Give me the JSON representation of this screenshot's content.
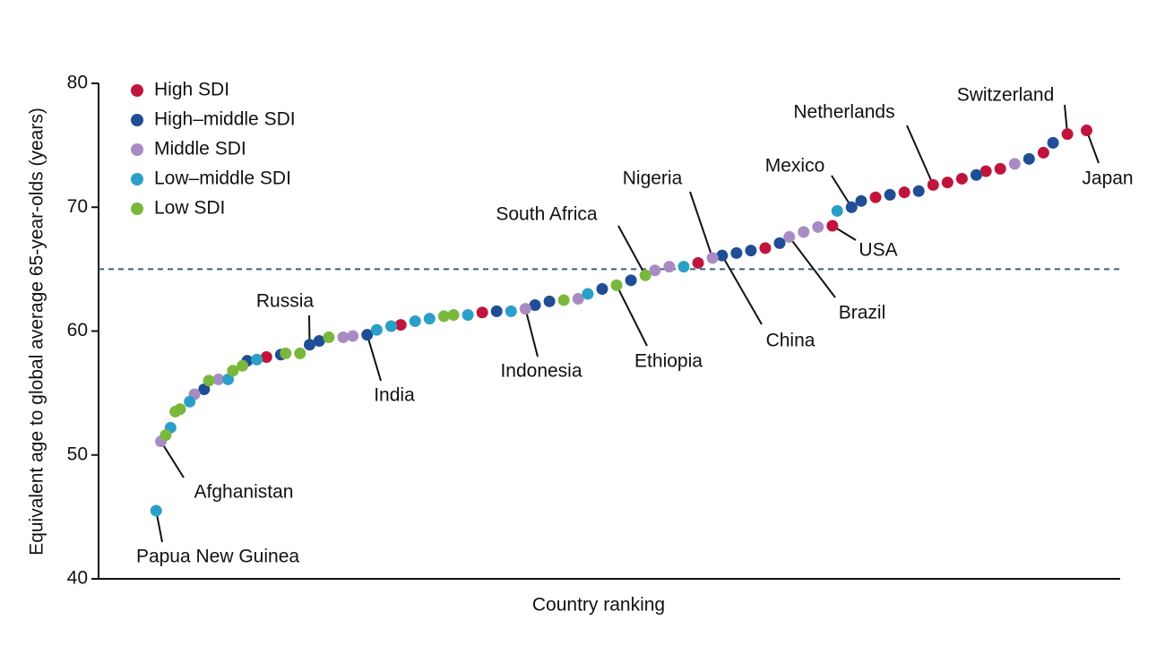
{
  "chart_data": {
    "type": "scatter",
    "y_label": "Equivalent age to global average 65-year-olds (years)",
    "x_label": "Country ranking",
    "xlim": [
      -11,
      202
    ],
    "ylim": [
      40,
      80
    ],
    "yticks": [
      40,
      50,
      60,
      70,
      80
    ],
    "reference_line": 65,
    "legend": "upper left",
    "series": [
      {
        "name": "High SDI",
        "color": "#c0143c",
        "x": [
          24,
          52,
          69,
          114,
          128,
          142,
          151,
          157,
          163,
          166,
          169,
          174,
          177,
          186,
          191,
          195
        ],
        "values": [
          57.9,
          60.5,
          61.5,
          65.5,
          66.7,
          68.5,
          70.8,
          71.2,
          71.8,
          72.0,
          72.3,
          72.9,
          73.1,
          74.4,
          75.9,
          76.2
        ]
      },
      {
        "name": "High–middle SDI",
        "color": "#1f4e96",
        "x": [
          11,
          20,
          27,
          33,
          35,
          45,
          72,
          80,
          83,
          94,
          100,
          119,
          122,
          125,
          131,
          146,
          148,
          154,
          160,
          172,
          183,
          188
        ],
        "values": [
          55.3,
          57.6,
          58.1,
          58.9,
          59.2,
          59.7,
          61.6,
          62.1,
          62.4,
          63.4,
          64.1,
          66.1,
          66.3,
          66.5,
          67.1,
          70.0,
          70.5,
          71.0,
          71.3,
          72.6,
          73.9,
          75.2
        ]
      },
      {
        "name": "Middle SDI",
        "color": "#a98bc4",
        "x": [
          2,
          9,
          14,
          40,
          42,
          78,
          89,
          105,
          108,
          117,
          133,
          136,
          139,
          180
        ],
        "values": [
          51.1,
          54.9,
          56.1,
          59.5,
          59.6,
          61.8,
          62.6,
          64.9,
          65.2,
          65.9,
          67.6,
          68.0,
          68.4,
          73.5
        ]
      },
      {
        "name": "Low–middle SDI",
        "color": "#2aa0c8",
        "x": [
          1,
          4,
          8,
          16,
          22,
          47,
          50,
          55,
          58,
          66,
          75,
          91,
          111,
          143
        ],
        "values": [
          45.5,
          52.2,
          54.3,
          56.1,
          57.7,
          60.1,
          60.4,
          60.8,
          61.0,
          61.3,
          61.6,
          63.0,
          65.2,
          69.7
        ]
      },
      {
        "name": "Low SDI",
        "color": "#7ab83c",
        "x": [
          3,
          5,
          6,
          12,
          17,
          19,
          28,
          31,
          37,
          61,
          63,
          86,
          97,
          103
        ],
        "values": [
          51.6,
          53.5,
          53.7,
          56.0,
          56.8,
          57.2,
          58.2,
          58.2,
          59.5,
          61.2,
          61.3,
          62.5,
          63.7,
          64.5
        ]
      }
    ],
    "annotations": [
      {
        "label": "Papua New Guinea",
        "x": 1
      },
      {
        "label": "Afghanistan",
        "x": 2
      },
      {
        "label": "Russia",
        "x": 33
      },
      {
        "label": "India",
        "x": 45
      },
      {
        "label": "Indonesia",
        "x": 78
      },
      {
        "label": "Ethiopia",
        "x": 97
      },
      {
        "label": "South Africa",
        "x": 103
      },
      {
        "label": "Nigeria",
        "x": 117
      },
      {
        "label": "China",
        "x": 119
      },
      {
        "label": "Brazil",
        "x": 133
      },
      {
        "label": "USA",
        "x": 142
      },
      {
        "label": "Mexico",
        "x": 146
      },
      {
        "label": "Netherlands",
        "x": 163
      },
      {
        "label": "Switzerland",
        "x": 191
      },
      {
        "label": "Japan",
        "x": 195
      }
    ]
  }
}
